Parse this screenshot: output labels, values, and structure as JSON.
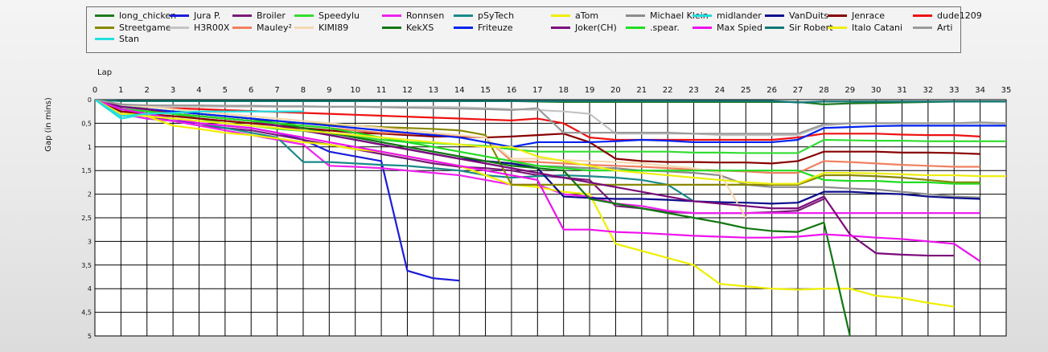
{
  "chart_data": {
    "type": "line",
    "xlabel": "Lap",
    "ylabel": "Gap (in mins)",
    "xlim": [
      0,
      35
    ],
    "ylim": [
      0,
      5
    ],
    "y_inverted": true,
    "grid": true,
    "legend_position": "top",
    "x_ticks": [
      0,
      1,
      2,
      3,
      4,
      5,
      6,
      7,
      8,
      9,
      10,
      11,
      12,
      13,
      14,
      15,
      16,
      17,
      18,
      19,
      20,
      21,
      22,
      23,
      24,
      25,
      26,
      27,
      28,
      29,
      30,
      31,
      32,
      33,
      34,
      35
    ],
    "y_ticks": [
      0,
      0.5,
      1,
      1.5,
      2,
      2.5,
      3,
      3.5,
      4,
      4.5,
      5
    ],
    "y_tick_labels": [
      "0",
      "0,5",
      "1",
      "1,5",
      "2",
      "2,5",
      "3",
      "3,5",
      "4",
      "4,5",
      "5"
    ],
    "series": [
      {
        "name": "long_chicken",
        "color": "#1f7a1f",
        "values": [
          0,
          0.03,
          0.03,
          0.03,
          0.03,
          0.03,
          0.03,
          0.03,
          0.03,
          0.03,
          0.03,
          0.03,
          0.03,
          0.03,
          0.03,
          0.03,
          0.03,
          0.04,
          0.05,
          0.05,
          0.05,
          0.05,
          0.05,
          0.05,
          0.05,
          0.05,
          0.05,
          0.05,
          0.1,
          0.08,
          0.07,
          0.06,
          0.05,
          0.04,
          0.04,
          0.04
        ]
      },
      {
        "name": "Jura P.",
        "color": "#1c1cdb",
        "values": [
          0,
          0.3,
          0.4,
          0.45,
          0.5,
          0.55,
          0.6,
          0.7,
          0.85,
          1.1,
          1.2,
          1.3,
          3.62,
          3.78,
          3.83
        ]
      },
      {
        "name": "Broiler",
        "color": "#7a1a7a",
        "values": [
          0,
          0.25,
          0.35,
          0.45,
          0.55,
          0.6,
          0.65,
          0.75,
          0.85,
          0.95,
          1.05,
          1.15,
          1.25,
          1.35,
          1.42,
          1.45,
          1.5,
          1.6,
          1.65,
          1.7,
          2.25,
          2.3,
          2.38,
          2.4,
          2.4,
          2.4,
          2.38,
          2.35,
          2.1
        ]
      },
      {
        "name": "Speedylu",
        "color": "#33dd33",
        "values": [
          0,
          0.1,
          0.2,
          0.3,
          0.4,
          0.5,
          0.55,
          0.62,
          0.66,
          0.72,
          0.78,
          0.85,
          0.9,
          0.92,
          0.95,
          0.98,
          1.05,
          1.1,
          1.1,
          1.1,
          1.1,
          1.1,
          1.1,
          1.12,
          1.12,
          1.13,
          1.13,
          1.13,
          0.85,
          0.86,
          0.87,
          0.87,
          0.88,
          0.88,
          0.88,
          0.88
        ]
      },
      {
        "name": "Ronnsen",
        "color": "#ee22ee",
        "values": [
          0,
          0.3,
          0.4,
          0.45,
          0.55,
          0.65,
          0.75,
          0.85,
          0.95,
          1.4,
          1.42,
          1.45,
          1.5,
          1.55,
          1.6,
          1.7,
          1.8,
          1.8,
          2.0,
          2.05,
          2.2,
          2.25,
          2.35,
          2.4,
          2.4,
          2.4,
          2.4,
          2.4,
          2.4,
          2.4,
          2.4,
          2.4,
          2.4,
          2.4,
          2.4
        ]
      },
      {
        "name": "pSyTech",
        "color": "#1a8a8a",
        "values": [
          0,
          0.2,
          0.3,
          0.4,
          0.5,
          0.6,
          0.7,
          0.8,
          1.32,
          1.32,
          1.35,
          1.38,
          1.4,
          1.45,
          1.5,
          1.6,
          1.65,
          1.62,
          1.6,
          1.62,
          1.65,
          1.7,
          1.8,
          2.15
        ]
      },
      {
        "name": "aTom",
        "color": "#eeee00",
        "values": [
          0,
          0.25,
          0.35,
          0.55,
          0.62,
          0.7,
          0.75,
          0.82,
          0.9,
          0.95,
          1.05,
          1.1,
          1.2,
          1.3,
          1.4,
          1.6,
          1.8,
          1.85,
          1.95,
          2.0,
          3.05,
          3.2,
          3.35,
          3.5,
          3.9,
          3.95,
          4.0,
          4.02,
          4.0,
          4.0,
          4.15,
          4.2,
          4.3,
          4.38
        ]
      },
      {
        "name": "Michael Klein",
        "color": "#8c8c8c",
        "values": [
          0,
          0.15,
          0.22,
          0.3,
          0.35,
          0.4,
          0.45,
          0.55,
          0.6,
          0.7,
          0.8,
          0.9,
          1.0,
          1.1,
          1.2,
          1.3,
          1.35,
          1.4,
          1.42,
          1.45,
          1.45,
          1.5,
          1.52,
          1.55,
          1.6,
          1.8,
          1.85,
          1.85,
          1.85,
          1.88,
          1.9,
          1.95,
          2.0,
          2.05,
          2.07
        ]
      },
      {
        "name": "midlander",
        "color": "#22dddd",
        "values": [
          0,
          0.4,
          0.3,
          0.25,
          0.25,
          0.25,
          0.25,
          0.25,
          0.25
        ]
      },
      {
        "name": "VanDuits",
        "color": "#0c0c8c",
        "values": [
          0,
          0.2,
          0.25,
          0.3,
          0.35,
          0.4,
          0.45,
          0.55,
          0.65,
          0.75,
          0.85,
          0.95,
          1.05,
          1.15,
          1.25,
          1.3,
          1.35,
          1.45,
          2.05,
          2.08,
          2.1,
          2.1,
          2.12,
          2.15,
          2.17,
          2.18,
          2.2,
          2.18,
          1.95,
          1.95,
          1.98,
          2.0,
          2.05,
          2.08,
          2.1
        ]
      },
      {
        "name": "Jenrace",
        "color": "#880000",
        "values": [
          0,
          0.25,
          0.3,
          0.35,
          0.4,
          0.45,
          0.5,
          0.55,
          0.6,
          0.65,
          0.7,
          0.72,
          0.75,
          0.78,
          0.78,
          0.8,
          0.78,
          0.75,
          0.72,
          0.9,
          1.25,
          1.3,
          1.32,
          1.32,
          1.33,
          1.33,
          1.35,
          1.3,
          1.1,
          1.1,
          1.1,
          1.12,
          1.12,
          1.13,
          1.15
        ]
      },
      {
        "name": "dude1209",
        "color": "#ee1111",
        "values": [
          0,
          0.1,
          0.15,
          0.18,
          0.2,
          0.22,
          0.24,
          0.26,
          0.28,
          0.3,
          0.32,
          0.34,
          0.36,
          0.38,
          0.4,
          0.42,
          0.44,
          0.4,
          0.5,
          0.8,
          0.85,
          0.85,
          0.85,
          0.85,
          0.85,
          0.85,
          0.85,
          0.8,
          0.72,
          0.72,
          0.72,
          0.74,
          0.75,
          0.75,
          0.78
        ]
      },
      {
        "name": "Streetgame",
        "color": "#888800",
        "values": [
          0,
          0.15,
          0.2,
          0.25,
          0.3,
          0.35,
          0.4,
          0.45,
          0.5,
          0.52,
          0.55,
          0.58,
          0.6,
          0.62,
          0.65,
          0.75,
          1.8,
          1.8,
          1.8,
          1.8,
          1.8,
          1.8,
          1.8,
          1.8,
          1.8,
          1.8,
          1.8,
          1.8,
          1.6,
          1.6,
          1.62,
          1.65,
          1.7,
          1.75,
          1.75
        ]
      },
      {
        "name": "H3R00X",
        "color": "#c4c4c4",
        "values": [
          0,
          0.12,
          0.15,
          0.15,
          0.15,
          0.15,
          0.15,
          0.15,
          0.15,
          0.15,
          0.15,
          0.15,
          0.15,
          0.15,
          0.16,
          0.18,
          0.2,
          0.22,
          0.25,
          0.3,
          0.72,
          0.72,
          0.72,
          0.72,
          0.75,
          0.75,
          0.75,
          0.75,
          0.55,
          0.5,
          0.5,
          0.5,
          0.5,
          0.5,
          0.5,
          0.52
        ]
      },
      {
        "name": "Mauley²",
        "color": "#f08060",
        "values": [
          0,
          0.2,
          0.25,
          0.3,
          0.35,
          0.4,
          0.45,
          0.5,
          0.55,
          0.6,
          0.65,
          0.7,
          0.72,
          0.74,
          0.76,
          0.8,
          1.3,
          1.32,
          1.35,
          1.38,
          1.4,
          1.42,
          1.45,
          1.48,
          1.5,
          1.52,
          1.55,
          1.55,
          1.3,
          1.32,
          1.35,
          1.38,
          1.4,
          1.42,
          1.42
        ]
      },
      {
        "name": "KIMI89",
        "color": "#f5d8b0",
        "values": [
          0,
          0.1,
          0.15,
          0.2,
          0.25,
          0.3,
          0.35,
          0.4,
          0.45,
          0.5,
          0.55,
          0.6,
          0.65,
          0.7,
          0.75,
          0.8,
          1.25,
          1.25,
          1.28,
          1.3,
          1.32,
          1.35,
          1.4,
          1.45,
          1.55,
          2.5
        ]
      },
      {
        "name": "KekXS",
        "color": "#117711",
        "values": [
          0,
          0.15,
          0.2,
          0.25,
          0.3,
          0.35,
          0.4,
          0.5,
          0.6,
          0.7,
          0.8,
          0.9,
          1.0,
          1.1,
          1.2,
          1.3,
          1.4,
          1.45,
          1.5,
          2.1,
          2.2,
          2.3,
          2.4,
          2.5,
          2.6,
          2.72,
          2.78,
          2.8,
          2.6,
          5.0
        ]
      },
      {
        "name": "Friteuze",
        "color": "#0022ee",
        "values": [
          0,
          0.15,
          0.2,
          0.25,
          0.3,
          0.35,
          0.4,
          0.45,
          0.5,
          0.55,
          0.6,
          0.65,
          0.7,
          0.75,
          0.8,
          0.9,
          1.0,
          0.9,
          0.9,
          0.9,
          0.88,
          0.85,
          0.87,
          0.9,
          0.9,
          0.9,
          0.9,
          0.85,
          0.6,
          0.58,
          0.56,
          0.55,
          0.55,
          0.55,
          0.55,
          0.55
        ]
      },
      {
        "name": "Joker(CH)",
        "color": "#7a0a7a",
        "values": [
          0,
          0.15,
          0.2,
          0.3,
          0.35,
          0.4,
          0.45,
          0.55,
          0.65,
          0.75,
          0.85,
          0.95,
          1.05,
          1.15,
          1.25,
          1.35,
          1.45,
          1.55,
          1.65,
          1.75,
          1.85,
          1.95,
          2.05,
          2.15,
          2.2,
          2.25,
          2.3,
          2.3,
          2.05,
          2.85,
          3.25,
          3.28,
          3.3,
          3.3
        ]
      },
      {
        "name": ".spear.",
        "color": "#22dd22",
        "values": [
          0,
          0.2,
          0.25,
          0.3,
          0.35,
          0.4,
          0.45,
          0.5,
          0.55,
          0.6,
          0.7,
          0.8,
          0.9,
          1.0,
          1.1,
          1.2,
          1.3,
          1.4,
          1.45,
          1.5,
          1.5,
          1.5,
          1.5,
          1.5,
          1.5,
          1.5,
          1.5,
          1.5,
          1.7,
          1.72,
          1.72,
          1.75,
          1.75,
          1.78,
          1.78
        ]
      },
      {
        "name": "Max Spied",
        "color": "#ee11ee",
        "values": [
          0,
          0.2,
          0.3,
          0.4,
          0.5,
          0.55,
          0.6,
          0.7,
          0.8,
          0.9,
          1.0,
          1.1,
          1.2,
          1.3,
          1.4,
          1.5,
          1.6,
          1.7,
          2.75,
          2.75,
          2.8,
          2.82,
          2.85,
          2.88,
          2.9,
          2.92,
          2.92,
          2.9,
          2.85,
          2.88,
          2.92,
          2.95,
          3.0,
          3.05,
          3.42
        ]
      },
      {
        "name": "Sir Robert",
        "color": "#117777",
        "values": [
          0,
          0.03,
          0.03,
          0.03,
          0.03,
          0.03,
          0.03,
          0.03,
          0.03,
          0.03,
          0.03,
          0.03,
          0.03,
          0.03,
          0.03,
          0.03,
          0.03,
          0.03,
          0.03,
          0.03,
          0.03,
          0.03,
          0.03,
          0.03,
          0.03,
          0.03,
          0.03,
          0.06,
          0.04,
          0.04,
          0.04,
          0.04,
          0.04,
          0.04,
          0.04,
          0.04
        ]
      },
      {
        "name": "Italo Catani",
        "color": "#eeee11",
        "values": [
          0,
          0.3,
          0.35,
          0.4,
          0.45,
          0.5,
          0.55,
          0.6,
          0.65,
          0.7,
          0.75,
          0.8,
          0.85,
          0.9,
          0.95,
          1.0,
          1.0,
          1.2,
          1.3,
          1.4,
          1.5,
          1.55,
          1.6,
          1.65,
          1.7,
          1.75,
          1.78,
          1.78,
          1.55,
          1.55,
          1.56,
          1.58,
          1.6,
          1.6,
          1.62,
          1.62
        ]
      },
      {
        "name": "Arti",
        "color": "#9a9a9a",
        "values": [
          0,
          0.1,
          0.12,
          0.12,
          0.12,
          0.13,
          0.13,
          0.14,
          0.14,
          0.15,
          0.15,
          0.16,
          0.17,
          0.18,
          0.19,
          0.2,
          0.22,
          0.18,
          0.7,
          0.7,
          0.7,
          0.7,
          0.7,
          0.72,
          0.72,
          0.72,
          0.72,
          0.72,
          0.52,
          0.5,
          0.5,
          0.5,
          0.5,
          0.5,
          0.48,
          0.5
        ]
      },
      {
        "name": "Stan",
        "color": "#22e0e0",
        "values": [
          0,
          0.35,
          0.3,
          0.28,
          0.25,
          0.25,
          0.25,
          0.25,
          0.25
        ]
      }
    ]
  }
}
